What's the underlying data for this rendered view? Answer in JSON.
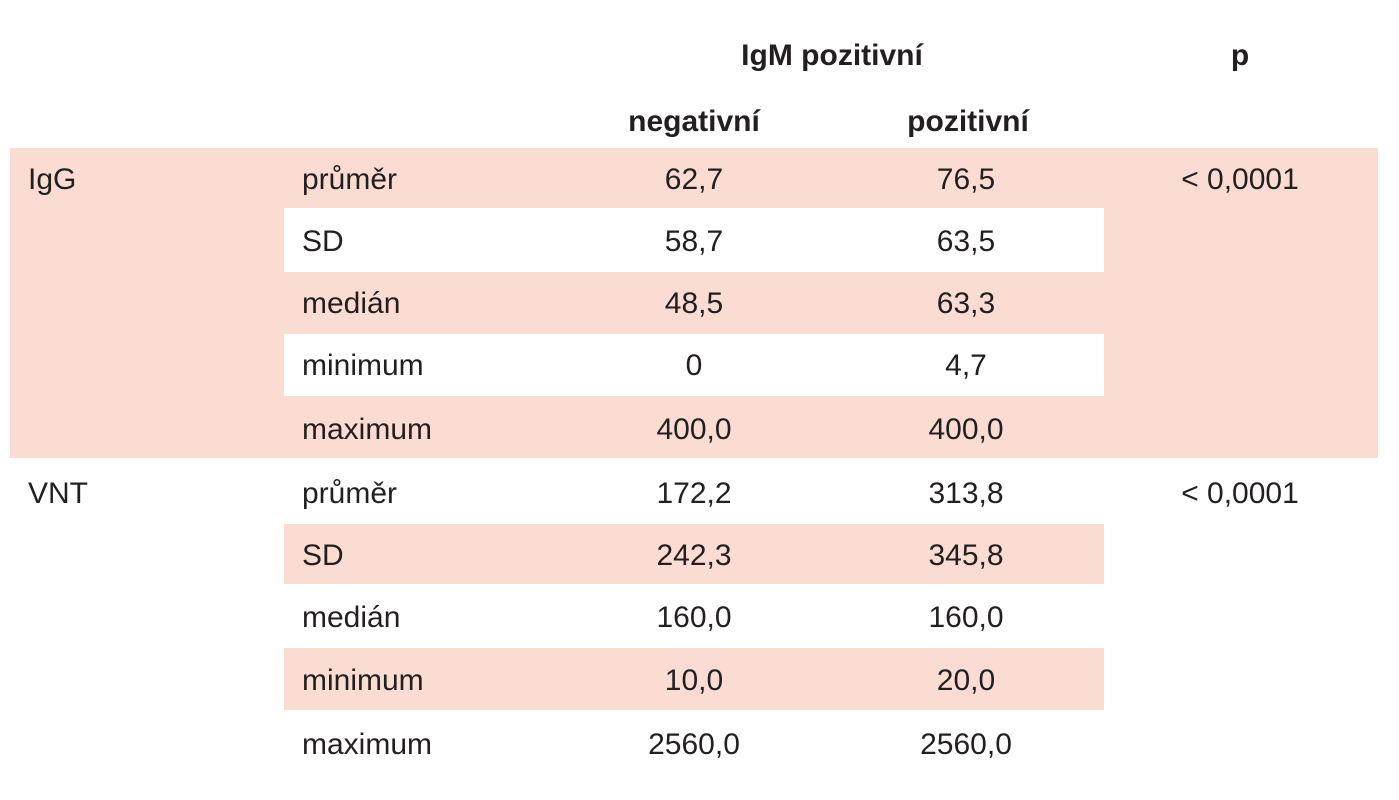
{
  "header": {
    "group_title": "IgM pozitivní",
    "p_title": "p",
    "col_negative": "negativní",
    "col_positive": "pozitivní"
  },
  "groups": [
    {
      "name": "IgG",
      "p": "< 0,0001",
      "rows": [
        {
          "stat": "průměr",
          "negative": "62,7",
          "positive": "76,5"
        },
        {
          "stat": "SD",
          "negative": "58,7",
          "positive": "63,5"
        },
        {
          "stat": "medián",
          "negative": "48,5",
          "positive": "63,3"
        },
        {
          "stat": "minimum",
          "negative": "0",
          "positive": "4,7"
        },
        {
          "stat": "maximum",
          "negative": "400,0",
          "positive": "400,0"
        }
      ]
    },
    {
      "name": "VNT",
      "p": "< 0,0001",
      "rows": [
        {
          "stat": "průměr",
          "negative": "172,2",
          "positive": "313,8"
        },
        {
          "stat": "SD",
          "negative": "242,3",
          "positive": "345,8"
        },
        {
          "stat": "medián",
          "negative": "160,0",
          "positive": "160,0"
        },
        {
          "stat": "minimum",
          "negative": "10,0",
          "positive": "20,0"
        },
        {
          "stat": "maximum",
          "negative": "2560,0",
          "positive": "2560,0"
        }
      ]
    }
  ]
}
